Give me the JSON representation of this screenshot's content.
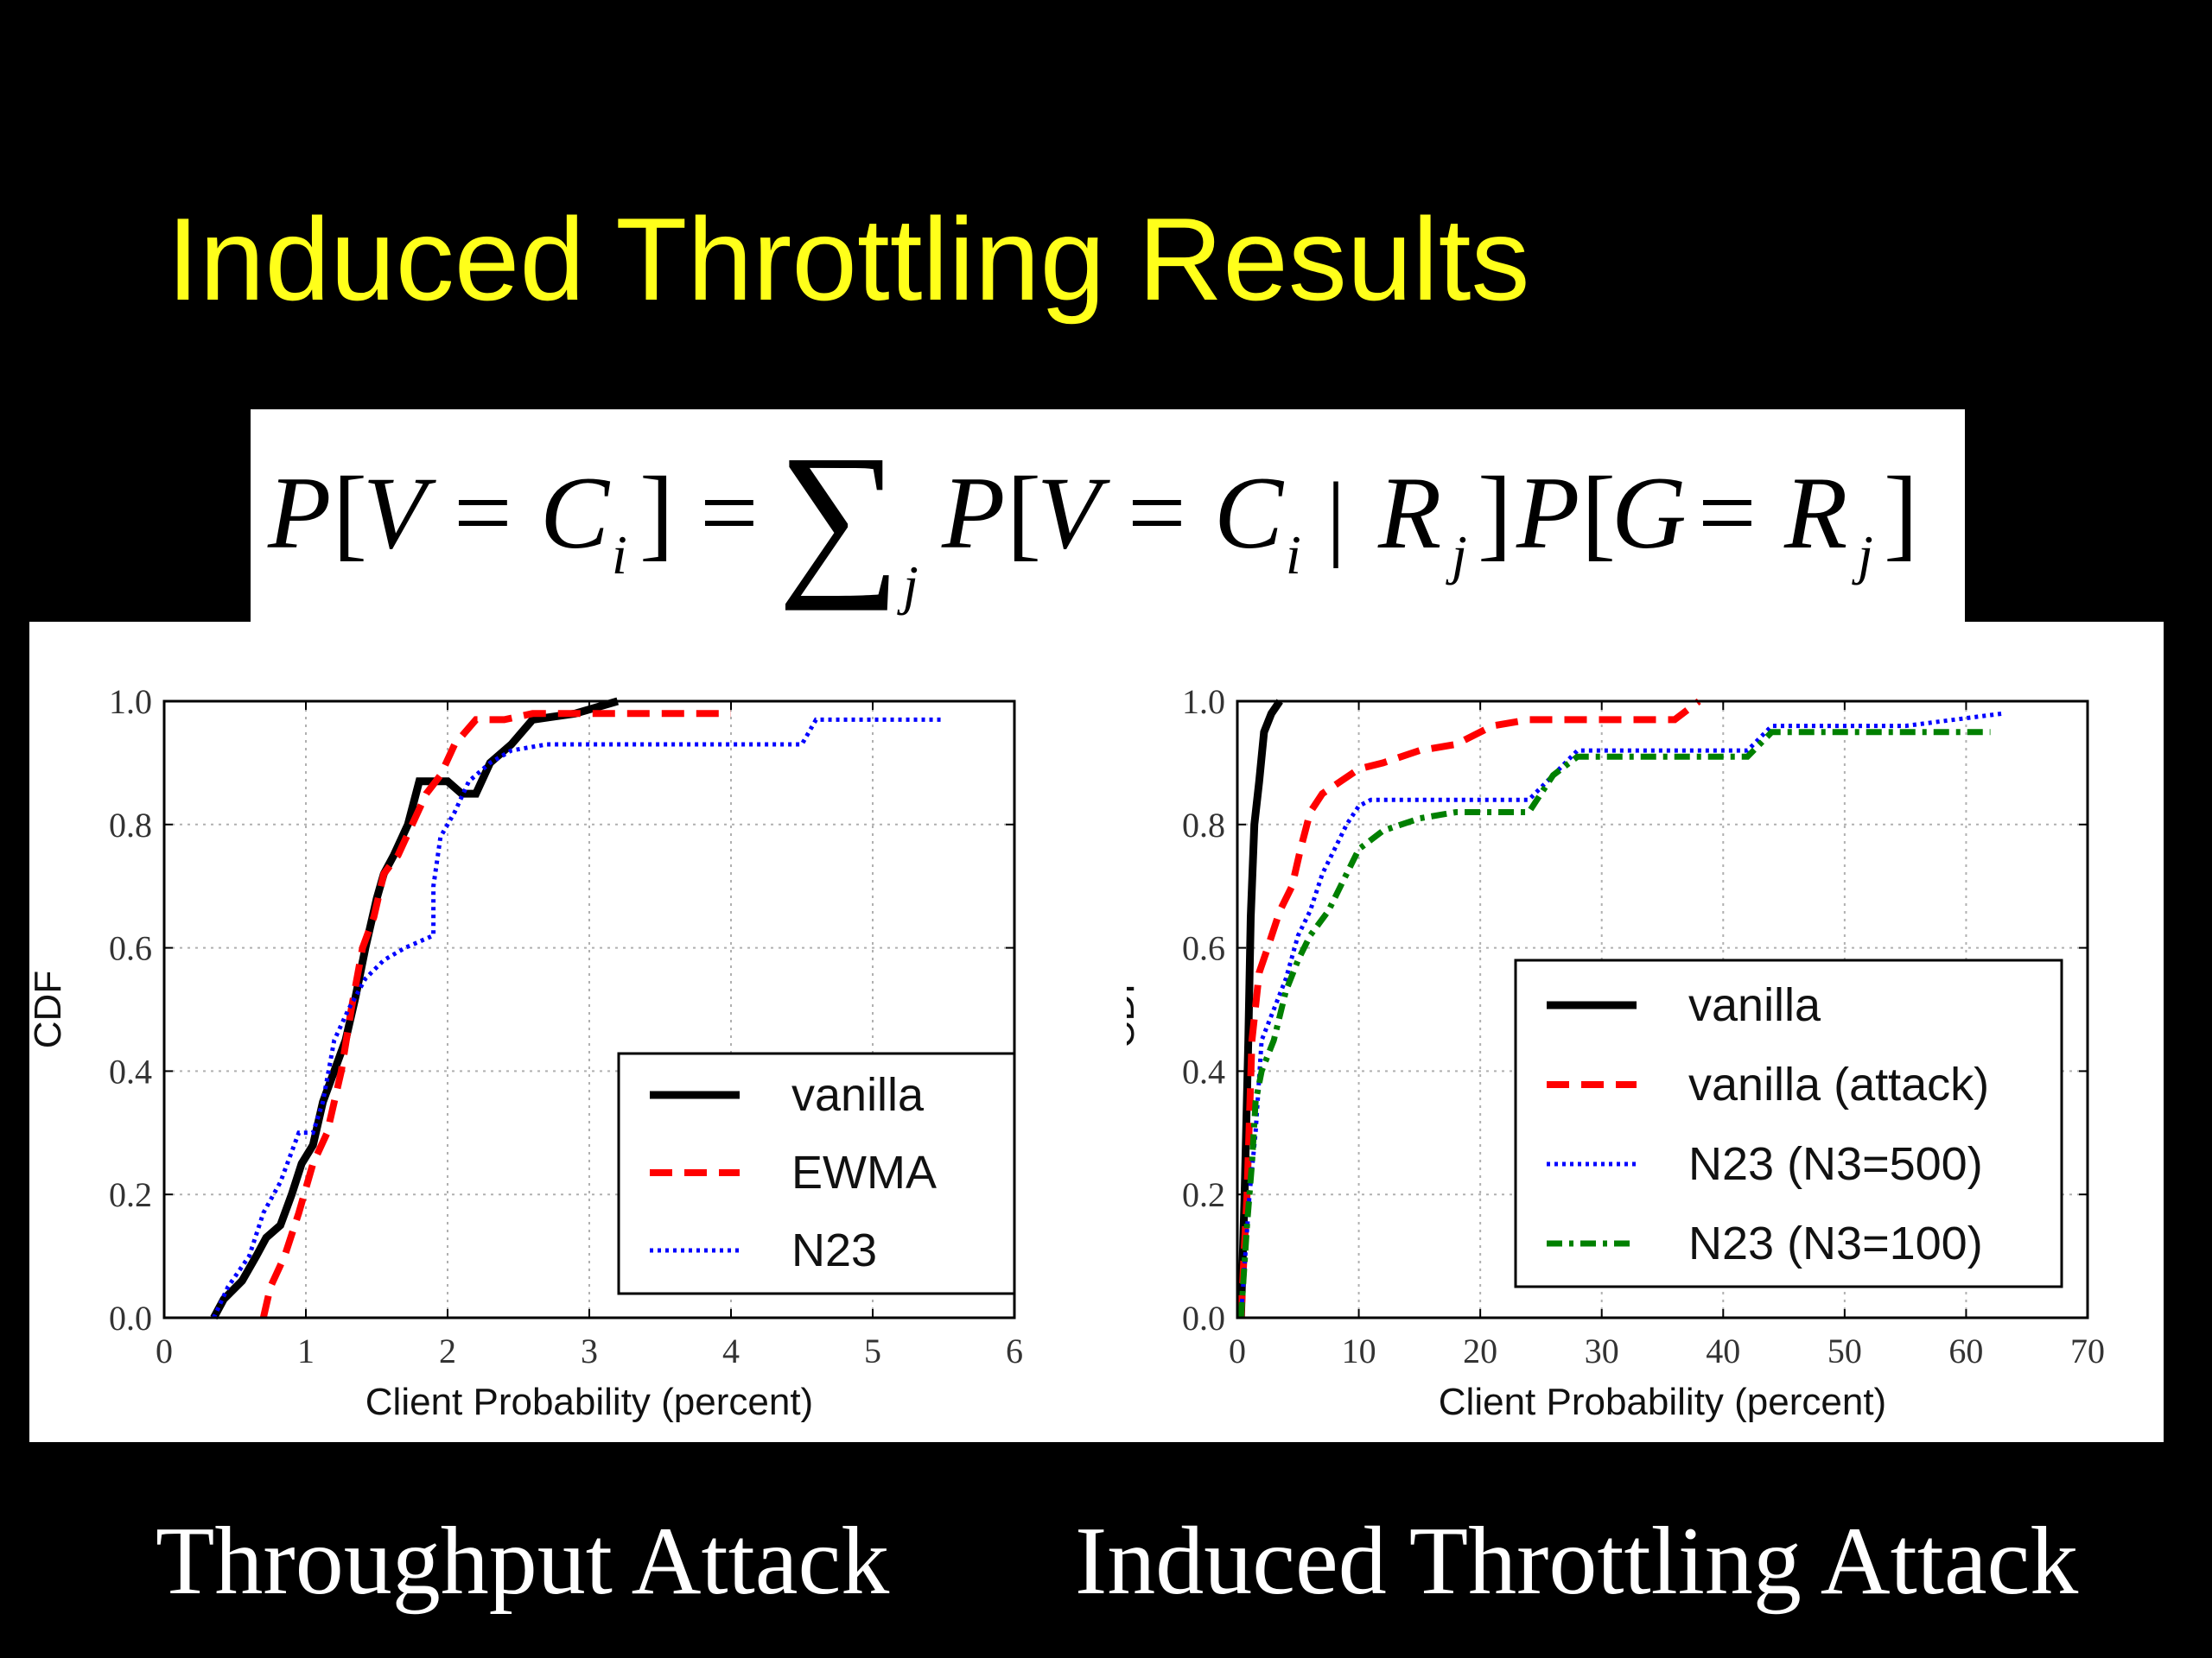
{
  "slide": {
    "title": "Induced Throttling Results",
    "title_color": "#ffff1a",
    "background": "#000000"
  },
  "formula": {
    "text": "P[V = C_i] = Σ_j P[V = C_i | R_j] P[G = R_j]",
    "P": "P",
    "V": "V",
    "C": "C",
    "i": "i",
    "R": "R",
    "j": "j",
    "G": "G",
    "eq": "=",
    "lb": "[",
    "rb": "]",
    "bar": "|",
    "sum": "∑"
  },
  "captions": {
    "left": "Throughput Attack",
    "right": "Induced Throttling Attack"
  },
  "chart_data": [
    {
      "type": "line",
      "xlabel": "Client Probability (percent)",
      "ylabel": "CDF",
      "xlim": [
        0,
        6
      ],
      "ylim": [
        0,
        1
      ],
      "xticks": [
        "0",
        "1",
        "2",
        "3",
        "4",
        "5",
        "6"
      ],
      "yticks": [
        "0.0",
        "0.2",
        "0.4",
        "0.6",
        "0.8",
        "1.0"
      ],
      "grid": true,
      "legend_position": "lower-right",
      "series": [
        {
          "name": "vanilla",
          "color": "#000000",
          "style": "solid",
          "points": [
            [
              0.35,
              0.0
            ],
            [
              0.42,
              0.03
            ],
            [
              0.55,
              0.06
            ],
            [
              0.65,
              0.1
            ],
            [
              0.72,
              0.13
            ],
            [
              0.82,
              0.15
            ],
            [
              0.9,
              0.2
            ],
            [
              0.97,
              0.25
            ],
            [
              1.05,
              0.28
            ],
            [
              1.12,
              0.35
            ],
            [
              1.2,
              0.4
            ],
            [
              1.28,
              0.45
            ],
            [
              1.35,
              0.52
            ],
            [
              1.42,
              0.6
            ],
            [
              1.5,
              0.68
            ],
            [
              1.55,
              0.72
            ],
            [
              1.62,
              0.75
            ],
            [
              1.72,
              0.8
            ],
            [
              1.8,
              0.87
            ],
            [
              2.0,
              0.87
            ],
            [
              2.1,
              0.85
            ],
            [
              2.2,
              0.85
            ],
            [
              2.3,
              0.9
            ],
            [
              2.45,
              0.93
            ],
            [
              2.6,
              0.97
            ],
            [
              2.9,
              0.98
            ],
            [
              3.2,
              1.0
            ]
          ]
        },
        {
          "name": "EWMA",
          "color": "#ff0000",
          "style": "dashed",
          "points": [
            [
              0.7,
              0.0
            ],
            [
              0.75,
              0.05
            ],
            [
              0.85,
              0.1
            ],
            [
              0.95,
              0.17
            ],
            [
              1.05,
              0.25
            ],
            [
              1.15,
              0.3
            ],
            [
              1.25,
              0.4
            ],
            [
              1.32,
              0.5
            ],
            [
              1.4,
              0.6
            ],
            [
              1.48,
              0.65
            ],
            [
              1.55,
              0.72
            ],
            [
              1.65,
              0.75
            ],
            [
              1.75,
              0.8
            ],
            [
              1.85,
              0.85
            ],
            [
              1.95,
              0.88
            ],
            [
              2.05,
              0.93
            ],
            [
              2.2,
              0.97
            ],
            [
              2.4,
              0.97
            ],
            [
              2.6,
              0.98
            ],
            [
              3.0,
              0.98
            ],
            [
              3.5,
              0.98
            ],
            [
              4.0,
              0.98
            ]
          ]
        },
        {
          "name": "N23",
          "color": "#0000ff",
          "style": "dotted",
          "points": [
            [
              0.35,
              0.0
            ],
            [
              0.45,
              0.05
            ],
            [
              0.6,
              0.1
            ],
            [
              0.7,
              0.17
            ],
            [
              0.82,
              0.22
            ],
            [
              0.95,
              0.3
            ],
            [
              1.05,
              0.3
            ],
            [
              1.12,
              0.35
            ],
            [
              1.2,
              0.45
            ],
            [
              1.3,
              0.5
            ],
            [
              1.42,
              0.55
            ],
            [
              1.55,
              0.58
            ],
            [
              1.7,
              0.6
            ],
            [
              1.9,
              0.62
            ],
            [
              1.9,
              0.7
            ],
            [
              1.95,
              0.78
            ],
            [
              2.05,
              0.82
            ],
            [
              2.15,
              0.87
            ],
            [
              2.3,
              0.9
            ],
            [
              2.45,
              0.92
            ],
            [
              2.7,
              0.93
            ],
            [
              3.5,
              0.93
            ],
            [
              4.5,
              0.93
            ],
            [
              4.6,
              0.97
            ],
            [
              5.5,
              0.97
            ]
          ]
        }
      ]
    },
    {
      "type": "line",
      "xlabel": "Client Probability (percent)",
      "ylabel": "CDF",
      "xlim": [
        0,
        70
      ],
      "ylim": [
        0,
        1
      ],
      "xticks": [
        "0",
        "10",
        "20",
        "30",
        "40",
        "50",
        "60",
        "70"
      ],
      "yticks": [
        "0.0",
        "0.2",
        "0.4",
        "0.6",
        "0.8",
        "1.0"
      ],
      "grid": true,
      "legend_position": "center-right",
      "series": [
        {
          "name": "vanilla",
          "color": "#000000",
          "style": "solid",
          "points": [
            [
              0.3,
              0.0
            ],
            [
              0.6,
              0.2
            ],
            [
              0.9,
              0.45
            ],
            [
              1.1,
              0.65
            ],
            [
              1.4,
              0.8
            ],
            [
              1.8,
              0.87
            ],
            [
              2.2,
              0.95
            ],
            [
              2.8,
              0.98
            ],
            [
              3.5,
              1.0
            ]
          ]
        },
        {
          "name": "vanilla (attack)",
          "color": "#ff0000",
          "style": "dashed",
          "points": [
            [
              0.3,
              0.0
            ],
            [
              0.8,
              0.2
            ],
            [
              1.2,
              0.45
            ],
            [
              1.8,
              0.56
            ],
            [
              2.5,
              0.6
            ],
            [
              3.5,
              0.66
            ],
            [
              4.5,
              0.7
            ],
            [
              5.2,
              0.76
            ],
            [
              6.0,
              0.82
            ],
            [
              7.0,
              0.85
            ],
            [
              8.5,
              0.87
            ],
            [
              10,
              0.89
            ],
            [
              12,
              0.9
            ],
            [
              15,
              0.92
            ],
            [
              18,
              0.93
            ],
            [
              21,
              0.96
            ],
            [
              24,
              0.97
            ],
            [
              30,
              0.97
            ],
            [
              36,
              0.97
            ],
            [
              38,
              1.0
            ]
          ]
        },
        {
          "name": "N23 (N3=500)",
          "color": "#0000ff",
          "style": "dotted",
          "points": [
            [
              0.3,
              0.0
            ],
            [
              1.0,
              0.2
            ],
            [
              1.5,
              0.3
            ],
            [
              2.0,
              0.45
            ],
            [
              3.0,
              0.5
            ],
            [
              4.0,
              0.55
            ],
            [
              5.0,
              0.62
            ],
            [
              6.0,
              0.66
            ],
            [
              7.0,
              0.72
            ],
            [
              8.0,
              0.76
            ],
            [
              9.0,
              0.8
            ],
            [
              10,
              0.83
            ],
            [
              11,
              0.84
            ],
            [
              15,
              0.84
            ],
            [
              20,
              0.84
            ],
            [
              24,
              0.84
            ],
            [
              25,
              0.86
            ],
            [
              26,
              0.88
            ],
            [
              28,
              0.92
            ],
            [
              35,
              0.92
            ],
            [
              42,
              0.92
            ],
            [
              44,
              0.96
            ],
            [
              55,
              0.96
            ],
            [
              63,
              0.98
            ]
          ]
        },
        {
          "name": "N23 (N3=100)",
          "color": "#008000",
          "style": "dashdot",
          "points": [
            [
              0.3,
              0.0
            ],
            [
              0.8,
              0.15
            ],
            [
              1.2,
              0.25
            ],
            [
              1.5,
              0.35
            ],
            [
              2.0,
              0.4
            ],
            [
              3.0,
              0.45
            ],
            [
              4.0,
              0.53
            ],
            [
              5.0,
              0.58
            ],
            [
              6.0,
              0.62
            ],
            [
              7.5,
              0.66
            ],
            [
              9.0,
              0.72
            ],
            [
              10,
              0.76
            ],
            [
              12,
              0.79
            ],
            [
              15,
              0.81
            ],
            [
              18,
              0.82
            ],
            [
              22,
              0.82
            ],
            [
              24,
              0.82
            ],
            [
              25,
              0.85
            ],
            [
              26,
              0.88
            ],
            [
              28,
              0.91
            ],
            [
              35,
              0.91
            ],
            [
              42,
              0.91
            ],
            [
              44,
              0.95
            ],
            [
              55,
              0.95
            ],
            [
              62,
              0.95
            ]
          ]
        }
      ]
    }
  ]
}
